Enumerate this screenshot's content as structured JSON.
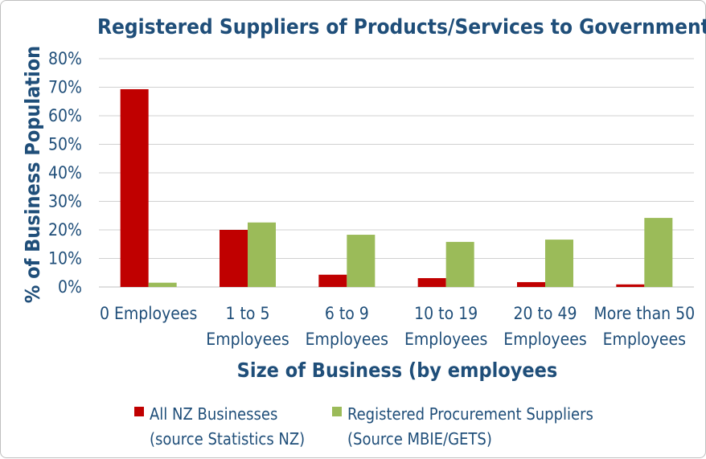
{
  "chart_data": {
    "type": "bar",
    "title": "Registered Suppliers of Products/Services to Government",
    "xlabel": "Size of Business (by employees",
    "ylabel": "% of Business Population",
    "ylim": [
      0,
      80
    ],
    "yticks": [
      "0%",
      "10%",
      "20%",
      "30%",
      "40%",
      "50%",
      "60%",
      "70%",
      "80%"
    ],
    "categories": [
      [
        "0 Employees"
      ],
      [
        "1 to 5",
        "Employees"
      ],
      [
        "6 to 9",
        "Employees"
      ],
      [
        "10 to 19",
        "Employees"
      ],
      [
        "20 to 49",
        "Employees"
      ],
      [
        "More than 50",
        "Employees"
      ]
    ],
    "series": [
      {
        "legend_lines": [
          "All NZ Businesses",
          "(source Statistics NZ)"
        ],
        "color": "#c00000",
        "values": [
          69.3,
          20.0,
          4.3,
          3.1,
          1.7,
          0.9
        ]
      },
      {
        "legend_lines": [
          "Registered Procurement Suppliers",
          "(Source MBIE/GETS)"
        ],
        "color": "#9bbb59",
        "values": [
          1.5,
          22.6,
          18.3,
          15.8,
          16.6,
          24.2
        ]
      }
    ],
    "grid": true,
    "legend_position": "bottom"
  }
}
